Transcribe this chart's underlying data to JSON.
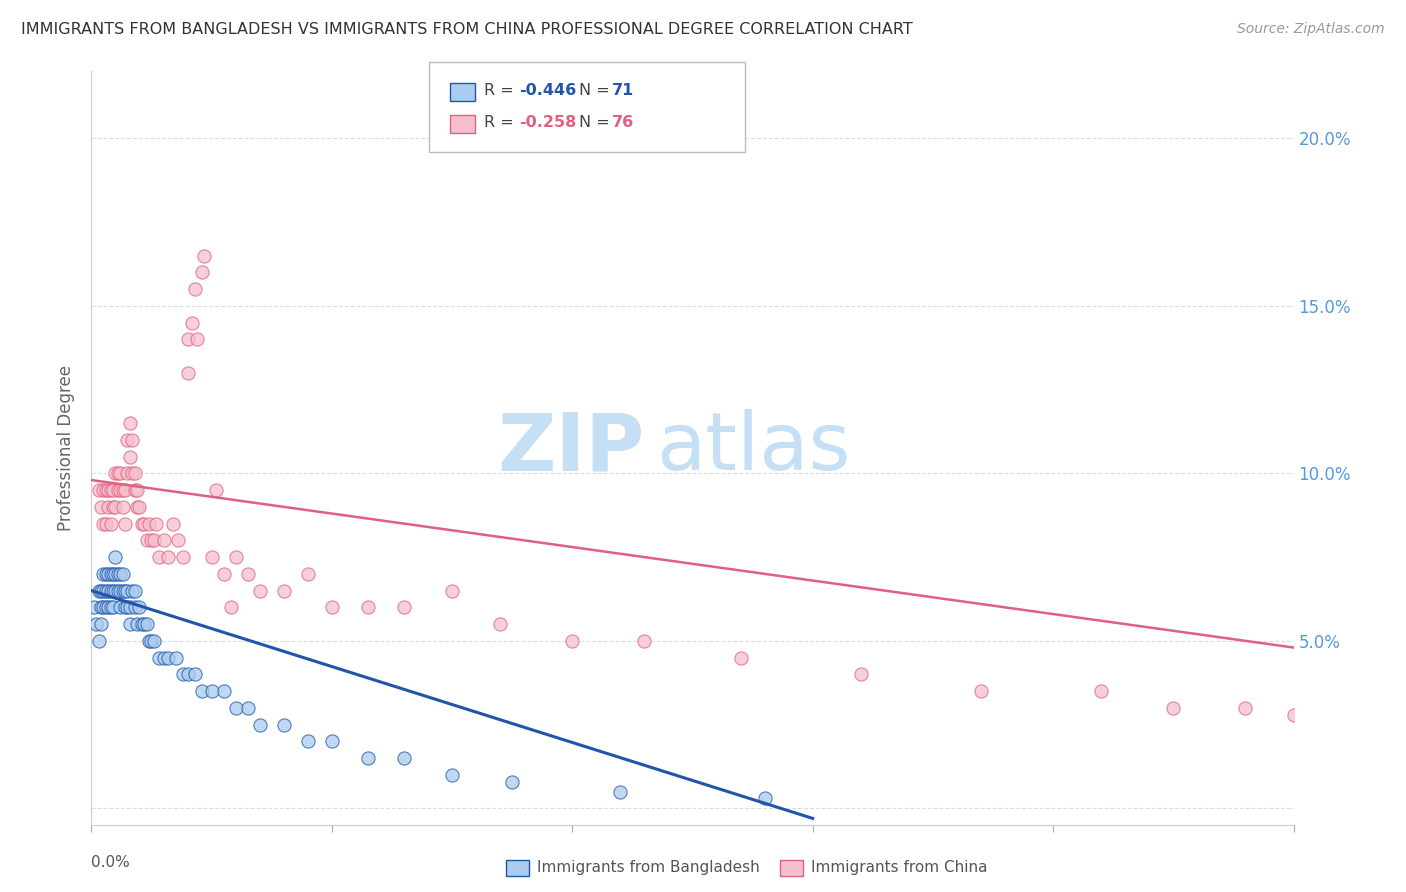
{
  "title": "IMMIGRANTS FROM BANGLADESH VS IMMIGRANTS FROM CHINA PROFESSIONAL DEGREE CORRELATION CHART",
  "source": "Source: ZipAtlas.com",
  "ylabel": "Professional Degree",
  "xlim": [
    0.0,
    0.5
  ],
  "ylim": [
    -0.005,
    0.22
  ],
  "color_bangladesh": "#aaccee",
  "color_china": "#f5c0cc",
  "color_line_bangladesh": "#2255aa",
  "color_line_china": "#e06080",
  "color_ytick_right": "#5599dd",
  "watermark_zip": "ZIP",
  "watermark_atlas": "atlas",
  "watermark_color_zip": "#c8dff5",
  "watermark_color_atlas": "#c8dff5",
  "bang_line_x0": 0.0,
  "bang_line_y0": 0.065,
  "bang_line_x1": 0.3,
  "bang_line_y1": -0.003,
  "china_line_x0": 0.0,
  "china_line_y0": 0.098,
  "china_line_x1": 0.5,
  "china_line_y1": 0.048,
  "bangladesh_x": [
    0.001,
    0.002,
    0.003,
    0.003,
    0.004,
    0.004,
    0.004,
    0.005,
    0.005,
    0.005,
    0.006,
    0.006,
    0.006,
    0.007,
    0.007,
    0.007,
    0.008,
    0.008,
    0.008,
    0.009,
    0.009,
    0.009,
    0.01,
    0.01,
    0.01,
    0.011,
    0.011,
    0.012,
    0.012,
    0.012,
    0.013,
    0.013,
    0.014,
    0.014,
    0.015,
    0.015,
    0.016,
    0.016,
    0.017,
    0.018,
    0.018,
    0.019,
    0.02,
    0.021,
    0.022,
    0.023,
    0.024,
    0.025,
    0.026,
    0.028,
    0.03,
    0.032,
    0.035,
    0.038,
    0.04,
    0.043,
    0.046,
    0.05,
    0.055,
    0.06,
    0.065,
    0.07,
    0.08,
    0.09,
    0.1,
    0.115,
    0.13,
    0.15,
    0.175,
    0.22,
    0.28
  ],
  "bangladesh_y": [
    0.06,
    0.055,
    0.05,
    0.065,
    0.055,
    0.06,
    0.065,
    0.06,
    0.065,
    0.07,
    0.06,
    0.065,
    0.07,
    0.065,
    0.06,
    0.07,
    0.065,
    0.06,
    0.07,
    0.06,
    0.065,
    0.07,
    0.065,
    0.07,
    0.075,
    0.065,
    0.07,
    0.065,
    0.06,
    0.07,
    0.065,
    0.07,
    0.06,
    0.065,
    0.06,
    0.065,
    0.055,
    0.06,
    0.065,
    0.06,
    0.065,
    0.055,
    0.06,
    0.055,
    0.055,
    0.055,
    0.05,
    0.05,
    0.05,
    0.045,
    0.045,
    0.045,
    0.045,
    0.04,
    0.04,
    0.04,
    0.035,
    0.035,
    0.035,
    0.03,
    0.03,
    0.025,
    0.025,
    0.02,
    0.02,
    0.015,
    0.015,
    0.01,
    0.008,
    0.005,
    0.003
  ],
  "china_x": [
    0.003,
    0.004,
    0.005,
    0.005,
    0.006,
    0.006,
    0.007,
    0.007,
    0.008,
    0.008,
    0.009,
    0.009,
    0.01,
    0.01,
    0.011,
    0.011,
    0.012,
    0.012,
    0.013,
    0.013,
    0.014,
    0.014,
    0.015,
    0.015,
    0.016,
    0.016,
    0.017,
    0.017,
    0.018,
    0.018,
    0.019,
    0.019,
    0.02,
    0.021,
    0.022,
    0.023,
    0.024,
    0.025,
    0.026,
    0.027,
    0.028,
    0.03,
    0.032,
    0.034,
    0.036,
    0.038,
    0.04,
    0.043,
    0.046,
    0.05,
    0.055,
    0.06,
    0.065,
    0.07,
    0.08,
    0.09,
    0.1,
    0.115,
    0.13,
    0.15,
    0.17,
    0.2,
    0.23,
    0.27,
    0.32,
    0.37,
    0.42,
    0.45,
    0.48,
    0.5,
    0.04,
    0.042,
    0.044,
    0.047,
    0.052,
    0.058
  ],
  "china_y": [
    0.095,
    0.09,
    0.085,
    0.095,
    0.085,
    0.095,
    0.09,
    0.095,
    0.085,
    0.095,
    0.09,
    0.095,
    0.09,
    0.1,
    0.095,
    0.1,
    0.095,
    0.1,
    0.09,
    0.095,
    0.085,
    0.095,
    0.11,
    0.1,
    0.105,
    0.115,
    0.1,
    0.11,
    0.095,
    0.1,
    0.09,
    0.095,
    0.09,
    0.085,
    0.085,
    0.08,
    0.085,
    0.08,
    0.08,
    0.085,
    0.075,
    0.08,
    0.075,
    0.085,
    0.08,
    0.075,
    0.14,
    0.155,
    0.16,
    0.075,
    0.07,
    0.075,
    0.07,
    0.065,
    0.065,
    0.07,
    0.06,
    0.06,
    0.06,
    0.065,
    0.055,
    0.05,
    0.05,
    0.045,
    0.04,
    0.035,
    0.035,
    0.03,
    0.03,
    0.028,
    0.13,
    0.145,
    0.14,
    0.165,
    0.095,
    0.06
  ]
}
